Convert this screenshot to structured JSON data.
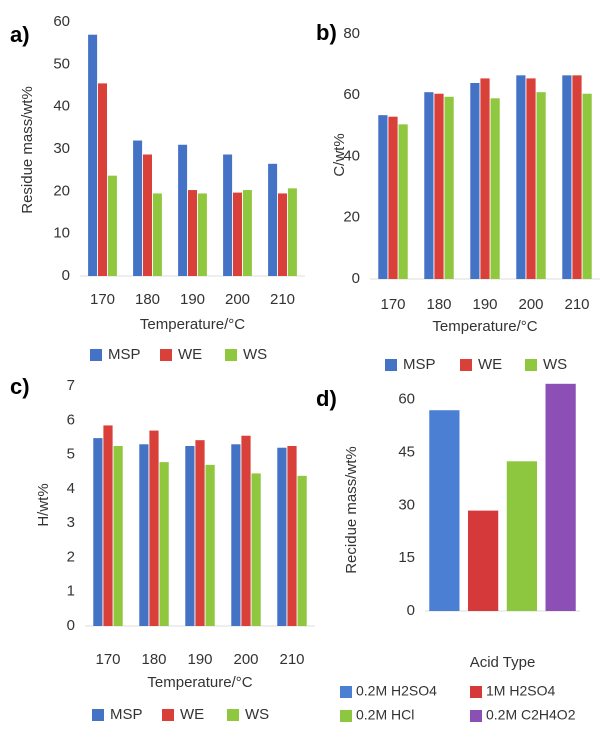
{
  "chart_data": [
    {
      "type": "bar",
      "label": "a)",
      "y_label": "Residue mass/wt%",
      "x_label": "Temperature/°C",
      "categories": [
        "170",
        "180",
        "190",
        "200",
        "210"
      ],
      "series": [
        {
          "name": "MSP",
          "color": "#4472c4",
          "values": [
            57,
            32,
            31,
            28.7,
            26.5
          ]
        },
        {
          "name": "WE",
          "color": "#d9403a",
          "values": [
            45.5,
            28.7,
            20.3,
            19.7,
            19.5
          ]
        },
        {
          "name": "WS",
          "color": "#8fc73e",
          "values": [
            23.7,
            19.5,
            19.5,
            20.3,
            20.7
          ]
        }
      ],
      "ylim": [
        0,
        60
      ],
      "yticks": [
        0,
        10,
        20,
        30,
        40,
        50,
        60
      ],
      "grid": false
    },
    {
      "type": "bar",
      "label": "b)",
      "y_label": "C/wt%",
      "x_label": "Temperature/°C",
      "categories": [
        "170",
        "180",
        "190",
        "200",
        "210"
      ],
      "series": [
        {
          "name": "MSP",
          "color": "#4472c4",
          "values": [
            53.5,
            61,
            64,
            66.5,
            66.5
          ]
        },
        {
          "name": "WE",
          "color": "#d9403a",
          "values": [
            53,
            60.5,
            65.5,
            65.5,
            66.5
          ]
        },
        {
          "name": "WS",
          "color": "#8fc73e",
          "values": [
            50.5,
            59.5,
            59,
            61,
            60.5
          ]
        }
      ],
      "ylim": [
        0,
        80
      ],
      "yticks": [
        0,
        20,
        40,
        60,
        80
      ],
      "grid": false
    },
    {
      "type": "bar",
      "label": "c)",
      "y_label": "H/wt%",
      "x_label": "Temperature/°C",
      "categories": [
        "170",
        "180",
        "190",
        "200",
        "210"
      ],
      "series": [
        {
          "name": "MSP",
          "color": "#4472c4",
          "values": [
            5.48,
            5.3,
            5.25,
            5.3,
            5.2
          ]
        },
        {
          "name": "WE",
          "color": "#d9403a",
          "values": [
            5.85,
            5.7,
            5.42,
            5.55,
            5.25
          ]
        },
        {
          "name": "WS",
          "color": "#8fc73e",
          "values": [
            5.25,
            4.78,
            4.7,
            4.45,
            4.38
          ]
        }
      ],
      "ylim": [
        0,
        7
      ],
      "yticks": [
        0,
        1,
        2,
        3,
        4,
        5,
        6,
        7
      ],
      "grid": false
    },
    {
      "type": "colorbar",
      "label": "d)",
      "y_label": "Recidue mass/wt%",
      "x_label": "Acid Type",
      "categories": [
        "0.2M H2SO4",
        "1M H2SO4",
        "0.2M HCl",
        "0.2M C2H4O2"
      ],
      "colors": [
        "#4a7fd4",
        "#d6393a",
        "#8dc63f",
        "#8b4fb5"
      ],
      "values": [
        57,
        28.5,
        42.5,
        64.5
      ],
      "ylim": [
        0,
        67
      ],
      "yticks": [
        0,
        15,
        30,
        45,
        60
      ],
      "grid": false
    }
  ]
}
